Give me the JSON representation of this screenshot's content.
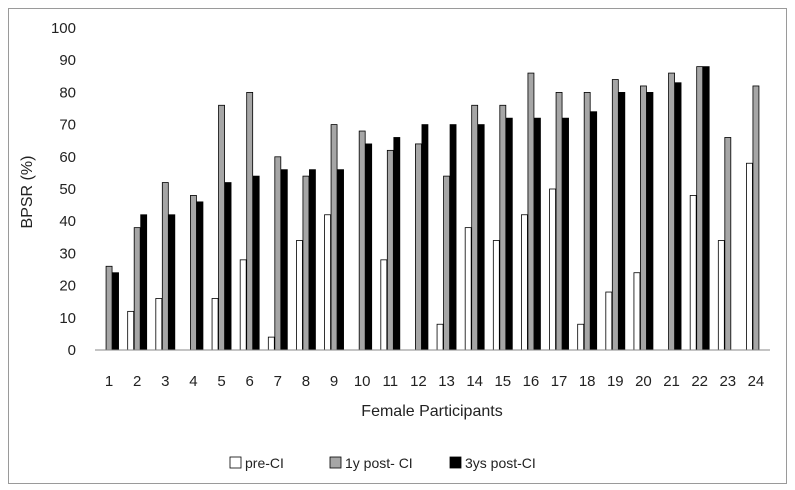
{
  "chart_data": {
    "type": "bar",
    "title": "",
    "xlabel": "Female Participants",
    "ylabel": "BPSR (%)",
    "ylim": [
      0,
      100
    ],
    "yticks": [
      0,
      10,
      20,
      30,
      40,
      50,
      60,
      70,
      80,
      90,
      100
    ],
    "grid": false,
    "legend_position": "bottom",
    "categories": [
      "1",
      "2",
      "3",
      "4",
      "5",
      "6",
      "7",
      "8",
      "9",
      "10",
      "11",
      "12",
      "13",
      "14",
      "15",
      "16",
      "17",
      "18",
      "19",
      "20",
      "21",
      "22",
      "23",
      "24"
    ],
    "series": [
      {
        "name": "pre-CI",
        "color": "#ffffff",
        "values": [
          0,
          12,
          16,
          0,
          16,
          28,
          4,
          34,
          42,
          0,
          28,
          0,
          8,
          38,
          34,
          42,
          50,
          8,
          18,
          24,
          0,
          48,
          34,
          58
        ]
      },
      {
        "name": "1y post- CI",
        "color": "#a6a6a6",
        "values": [
          26,
          38,
          52,
          48,
          76,
          80,
          60,
          54,
          70,
          68,
          62,
          64,
          54,
          76,
          76,
          86,
          80,
          80,
          84,
          82,
          86,
          88,
          66,
          82
        ]
      },
      {
        "name": "3ys post-CI",
        "color": "#000000",
        "values": [
          24,
          42,
          42,
          46,
          52,
          54,
          56,
          56,
          56,
          64,
          66,
          70,
          70,
          70,
          72,
          72,
          72,
          74,
          80,
          80,
          83,
          88,
          0,
          0
        ]
      }
    ]
  }
}
